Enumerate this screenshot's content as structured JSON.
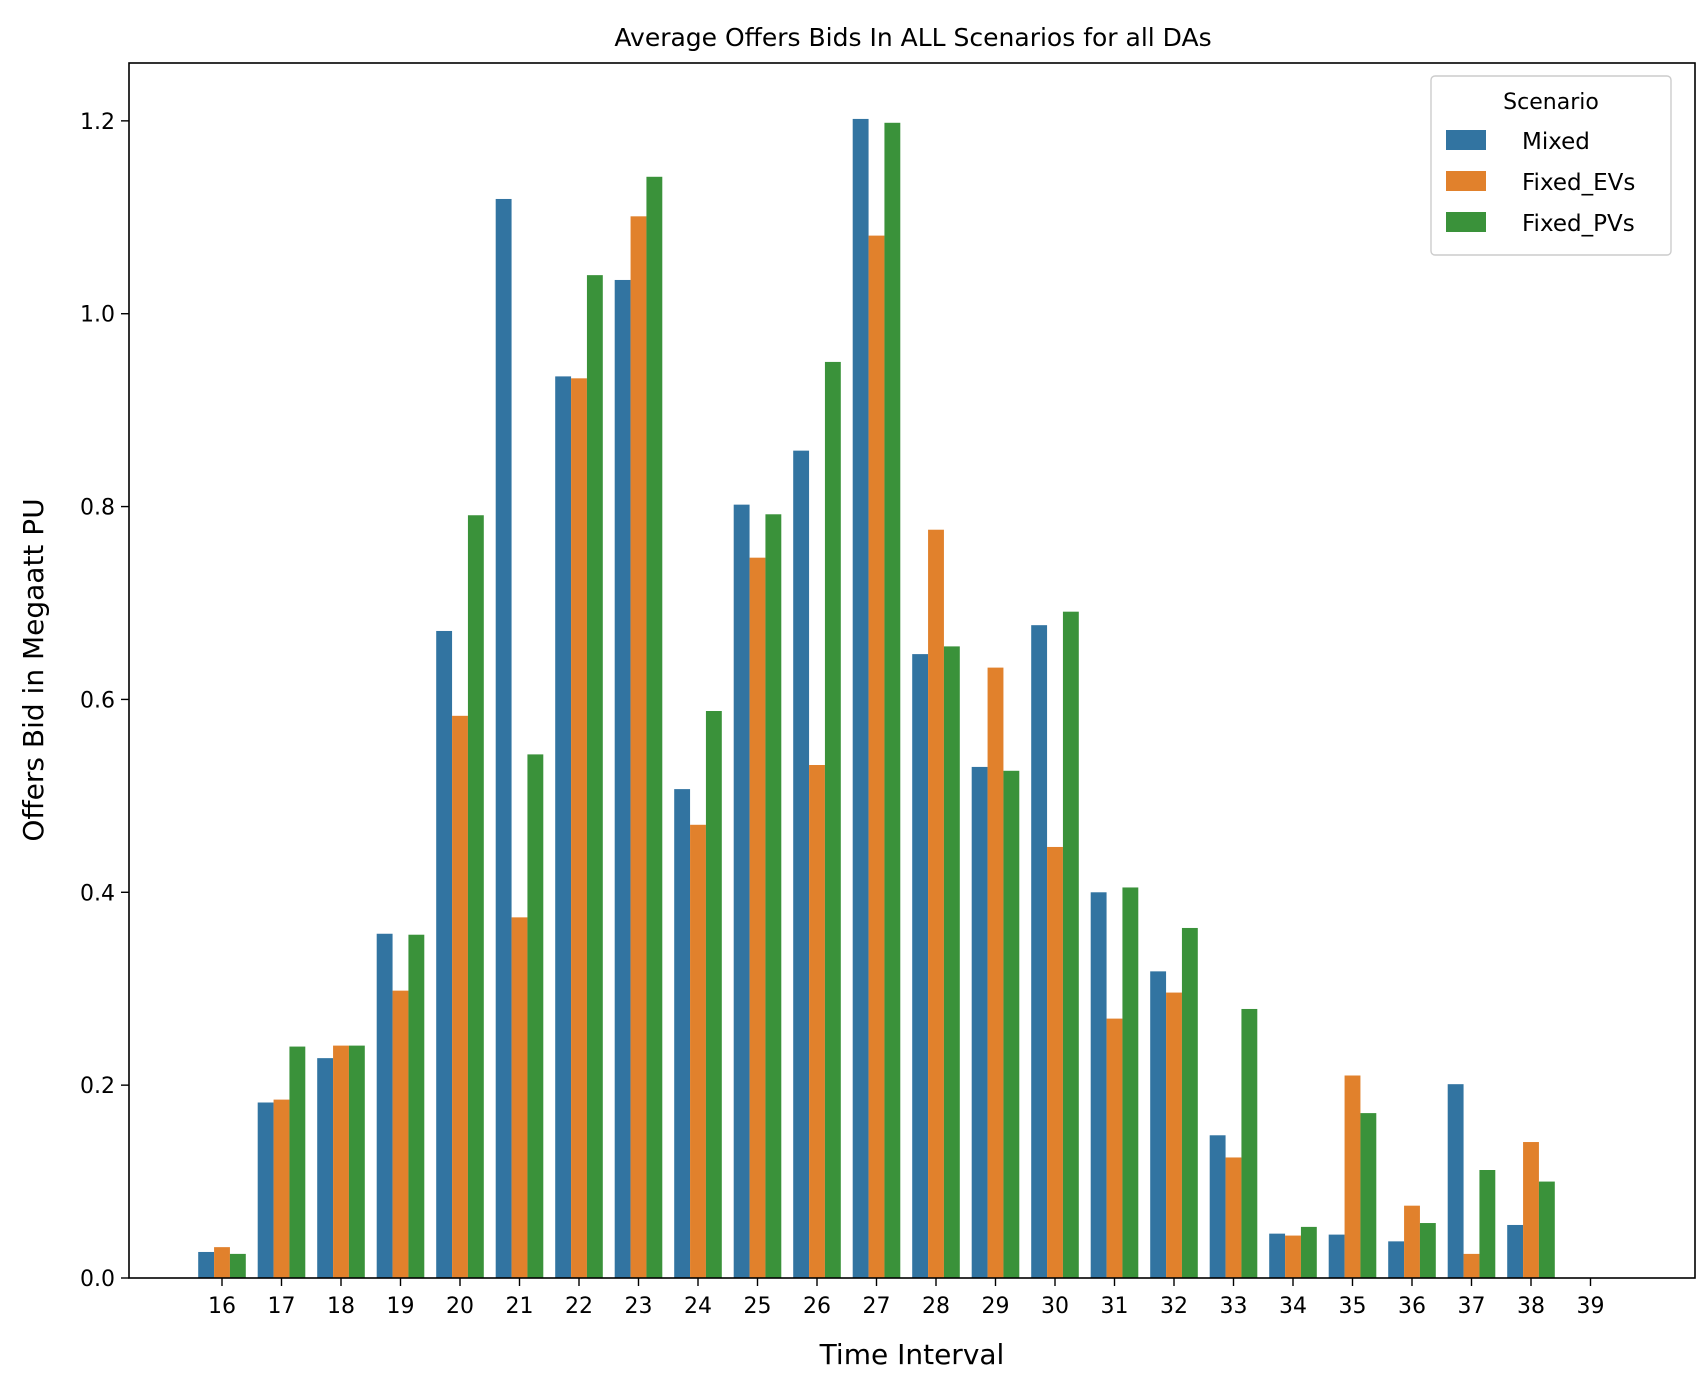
{
  "chart_data": {
    "type": "bar",
    "title": "Average Offers Bids In ALL Scenarios for all DAs",
    "xlabel": "Time Interval",
    "ylabel": "Offers Bid in Megaatt PU",
    "ylim": [
      0,
      1.26
    ],
    "yticks": [
      "0.0",
      "0.2",
      "0.4",
      "0.6",
      "0.8",
      "1.0",
      "1.2"
    ],
    "grid": false,
    "legend": {
      "title": "Scenario",
      "placement": "top-right"
    },
    "categories": [
      "16",
      "17",
      "18",
      "19",
      "20",
      "21",
      "22",
      "23",
      "24",
      "25",
      "26",
      "27",
      "28",
      "29",
      "30",
      "31",
      "32",
      "33",
      "34",
      "35",
      "36",
      "37",
      "38",
      "39"
    ],
    "series": [
      {
        "name": "Mixed",
        "color": "#3274a1",
        "values": [
          0.027,
          0.182,
          0.228,
          0.357,
          0.671,
          1.119,
          0.935,
          1.035,
          0.507,
          0.802,
          0.858,
          1.202,
          0.647,
          0.53,
          0.677,
          0.4,
          0.318,
          0.148,
          0.046,
          0.045,
          0.038,
          0.201,
          0.055,
          0
        ]
      },
      {
        "name": "Fixed_EVs",
        "color": "#e1812c",
        "values": [
          0.032,
          0.185,
          0.241,
          0.298,
          0.583,
          0.374,
          0.933,
          1.101,
          0.47,
          0.747,
          0.532,
          1.081,
          0.776,
          0.633,
          0.447,
          0.269,
          0.296,
          0.125,
          0.044,
          0.21,
          0.075,
          0.025,
          0.141,
          0
        ]
      },
      {
        "name": "Fixed_PVs",
        "color": "#3a923a",
        "values": [
          0.025,
          0.24,
          0.241,
          0.356,
          0.791,
          0.543,
          1.04,
          1.142,
          0.588,
          0.792,
          0.95,
          1.198,
          0.655,
          0.526,
          0.691,
          0.405,
          0.363,
          0.279,
          0.053,
          0.171,
          0.057,
          0.112,
          0.1,
          0
        ]
      }
    ]
  }
}
